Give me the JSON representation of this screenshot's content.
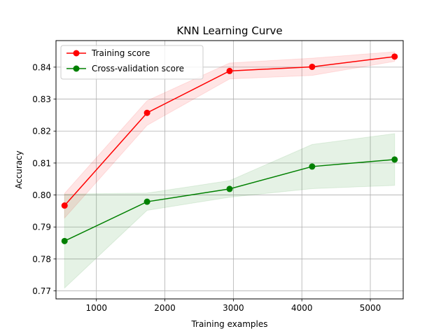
{
  "chart_data": {
    "type": "line",
    "title": "KNN Learning Curve",
    "xlabel": "Training examples",
    "ylabel": "Accuracy",
    "xlim": [
      410,
      5480
    ],
    "ylim": [
      0.7675,
      0.8483
    ],
    "xticks": [
      1000,
      2000,
      3000,
      4000,
      5000
    ],
    "xtick_labels": [
      "1000",
      "2000",
      "3000",
      "4000",
      "5000"
    ],
    "yticks": [
      0.77,
      0.78,
      0.79,
      0.8,
      0.81,
      0.82,
      0.83,
      0.84
    ],
    "ytick_labels": [
      "0.77",
      "0.78",
      "0.79",
      "0.80",
      "0.81",
      "0.82",
      "0.83",
      "0.84"
    ],
    "grid": true,
    "legend_position": "top-left",
    "x": [
      535,
      1740,
      2945,
      4150,
      5355
    ],
    "series": [
      {
        "name": "Training score",
        "color": "#ff0000",
        "values": [
          0.7967,
          0.8257,
          0.8388,
          0.8401,
          0.8433
        ],
        "band_upper": [
          0.8005,
          0.8295,
          0.8413,
          0.8428,
          0.8448
        ],
        "band_lower": [
          0.7928,
          0.8218,
          0.8363,
          0.8374,
          0.8418
        ]
      },
      {
        "name": "Cross-validation score",
        "color": "#008000",
        "values": [
          0.7856,
          0.7979,
          0.8019,
          0.8089,
          0.8111
        ],
        "band_upper": [
          0.8003,
          0.8006,
          0.8045,
          0.8158,
          0.8192
        ],
        "band_lower": [
          0.7709,
          0.7952,
          0.7993,
          0.802,
          0.803
        ]
      }
    ]
  }
}
